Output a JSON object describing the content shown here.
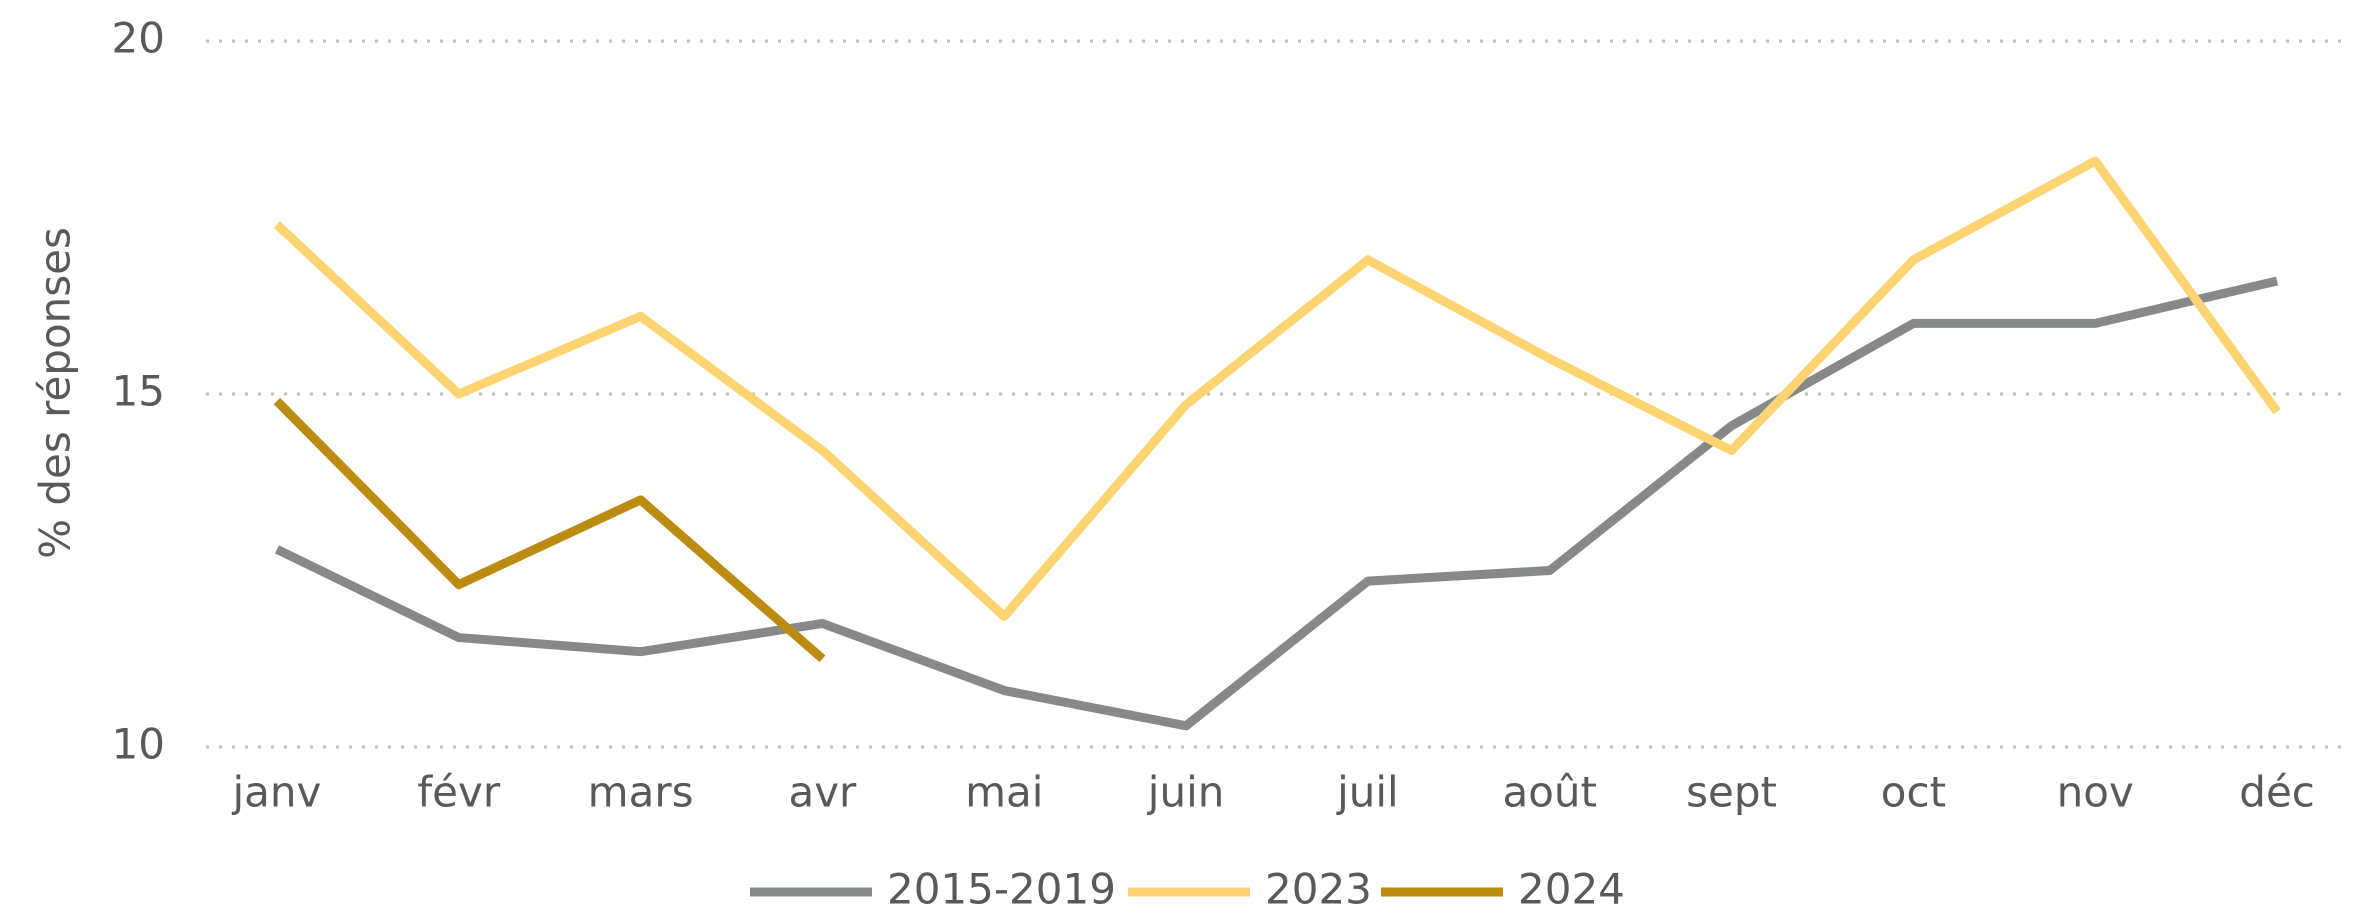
{
  "chart_data": {
    "type": "line",
    "ylabel": "% des réponses",
    "categories": [
      "janv",
      "févr",
      "mars",
      "avr",
      "mai",
      "juin",
      "juil",
      "août",
      "sept",
      "oct",
      "nov",
      "déc"
    ],
    "series": [
      {
        "name": "2015-2019",
        "color": "#878988",
        "values": [
          12.8,
          11.55,
          11.35,
          11.75,
          10.8,
          10.3,
          12.35,
          12.5,
          14.55,
          16.0,
          16.0,
          16.6
        ]
      },
      {
        "name": "2023",
        "color": "#fdd471",
        "values": [
          17.4,
          15.0,
          16.1,
          14.2,
          11.85,
          14.85,
          16.9,
          15.5,
          14.2,
          16.9,
          18.3,
          14.75
        ]
      },
      {
        "name": "2024",
        "color": "#bb8b12",
        "values": [
          14.9,
          12.3,
          13.5,
          11.25,
          null,
          null,
          null,
          null,
          null,
          null,
          null,
          null
        ]
      }
    ],
    "ylim": [
      10,
      20
    ],
    "yticks": [
      10,
      15,
      20
    ],
    "grid": true,
    "legend": "bottom"
  }
}
